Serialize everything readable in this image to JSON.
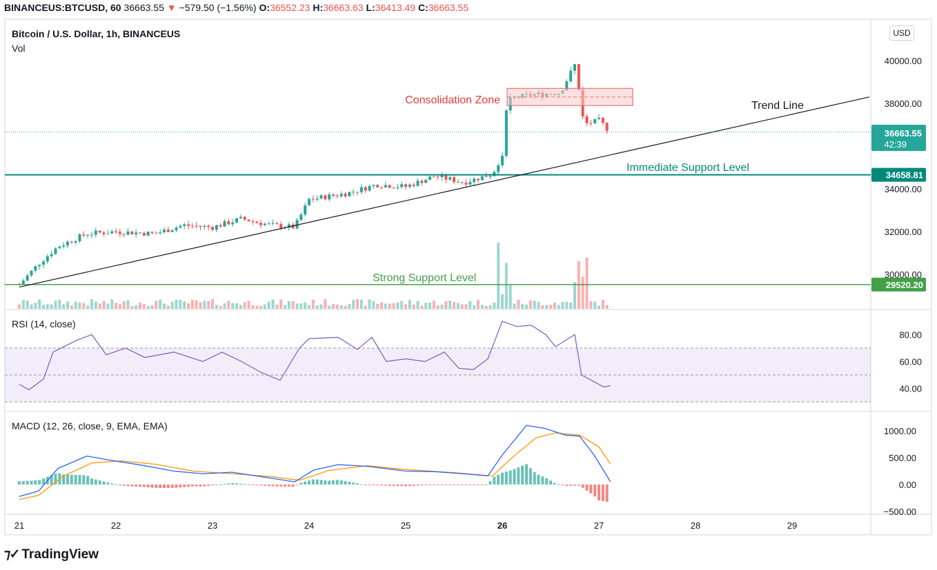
{
  "header": {
    "symbol": "BINANCEUS:BTCUSD, 60",
    "last": "36663.55",
    "arrow": "▼",
    "change": "−579.50 (−1.56%)",
    "o_label": "O:",
    "o_val": "36552.23",
    "h_label": "H:",
    "h_val": "36663.63",
    "l_label": "L:",
    "l_val": "36413.49",
    "c_label": "C:",
    "c_val": "36663.55"
  },
  "main": {
    "title": "Bitcoin / U.S. Dollar, 1h, BINANCEUS",
    "vol_label": "Vol",
    "currency_button": "USD",
    "price_ticks": [
      "40000.00",
      "38000.00",
      "34000.00",
      "32000.00",
      "30000.00"
    ],
    "last_price_tag": "36663.55",
    "countdown_tag": "42:39",
    "support1_tag": "34658.81",
    "support2_tag": "29520.20",
    "annotations": {
      "consolidation": "Consolidation Zone",
      "trend_line": "Trend Line",
      "immediate_support": "Immediate Support Level",
      "strong_support": "Strong Support Level"
    }
  },
  "rsi": {
    "title": "RSI (14, close)",
    "ticks": [
      "80.00",
      "60.00",
      "40.00"
    ]
  },
  "macd": {
    "title": "MACD (12, 26, close, 9, EMA, EMA)",
    "ticks": [
      "1000.00",
      "500.00",
      "0.00",
      "−500.00"
    ]
  },
  "time_axis": {
    "labels": [
      "21",
      "22",
      "23",
      "24",
      "25",
      "26",
      "27",
      "28",
      "29"
    ]
  },
  "branding": {
    "logo_text": "TradingView"
  },
  "colors": {
    "up": "#26a69a",
    "down": "#ef5350",
    "support": "#00897b",
    "strong_support": "#43a047",
    "rsi_line": "#7e57c2",
    "macd_line": "#2962ff",
    "signal_line": "#ff9800",
    "zone_fill": "#f8c9c9",
    "zone_border": "#e57373",
    "zone_label": "#e53935"
  },
  "chart_data": [
    {
      "type": "candlestick",
      "title": "Bitcoin / U.S. Dollar, 1h, BINANCEUS",
      "x_labels": [
        "21",
        "22",
        "23",
        "24",
        "25",
        "26",
        "27",
        "28",
        "29"
      ],
      "ylim": [
        29000,
        40800
      ],
      "anchors": [
        {
          "day": 21.0,
          "price": 29520
        },
        {
          "day": 21.2,
          "price": 30500
        },
        {
          "day": 21.4,
          "price": 31300
        },
        {
          "day": 21.7,
          "price": 31900
        },
        {
          "day": 22.0,
          "price": 32000
        },
        {
          "day": 22.4,
          "price": 31900
        },
        {
          "day": 22.7,
          "price": 32300
        },
        {
          "day": 23.0,
          "price": 32200
        },
        {
          "day": 23.3,
          "price": 32600
        },
        {
          "day": 23.6,
          "price": 32300
        },
        {
          "day": 23.85,
          "price": 32200
        },
        {
          "day": 24.0,
          "price": 33500
        },
        {
          "day": 24.4,
          "price": 33800
        },
        {
          "day": 24.7,
          "price": 34200
        },
        {
          "day": 25.0,
          "price": 34100
        },
        {
          "day": 25.3,
          "price": 34600
        },
        {
          "day": 25.6,
          "price": 34300
        },
        {
          "day": 25.9,
          "price": 34700
        },
        {
          "day": 26.0,
          "price": 35600
        },
        {
          "day": 26.05,
          "price": 38200
        },
        {
          "day": 26.3,
          "price": 38400
        },
        {
          "day": 26.6,
          "price": 38500
        },
        {
          "day": 26.75,
          "price": 39800
        },
        {
          "day": 26.85,
          "price": 37000
        },
        {
          "day": 27.0,
          "price": 37200
        },
        {
          "day": 27.12,
          "price": 36663
        }
      ],
      "support_levels": [
        34658.81,
        29520.2
      ],
      "consolidation_zone": [
        37900,
        38700
      ],
      "trend_line": [
        {
          "day": 21.0,
          "price": 29400
        },
        {
          "day": 29.8,
          "price": 38300
        }
      ]
    },
    {
      "type": "line",
      "title": "RSI (14, close)",
      "ylim": [
        25,
        95
      ],
      "bands": [
        70,
        50,
        30
      ],
      "points": [
        {
          "day": 21.0,
          "value": 43
        },
        {
          "day": 21.1,
          "value": 39
        },
        {
          "day": 21.25,
          "value": 47
        },
        {
          "day": 21.35,
          "value": 67
        },
        {
          "day": 21.6,
          "value": 76
        },
        {
          "day": 21.75,
          "value": 80
        },
        {
          "day": 21.9,
          "value": 65
        },
        {
          "day": 22.1,
          "value": 70
        },
        {
          "day": 22.3,
          "value": 63
        },
        {
          "day": 22.6,
          "value": 67
        },
        {
          "day": 22.9,
          "value": 60
        },
        {
          "day": 23.1,
          "value": 67
        },
        {
          "day": 23.3,
          "value": 60
        },
        {
          "day": 23.5,
          "value": 52
        },
        {
          "day": 23.7,
          "value": 46
        },
        {
          "day": 23.9,
          "value": 70
        },
        {
          "day": 24.0,
          "value": 77
        },
        {
          "day": 24.3,
          "value": 78
        },
        {
          "day": 24.5,
          "value": 69
        },
        {
          "day": 24.65,
          "value": 78
        },
        {
          "day": 24.8,
          "value": 60
        },
        {
          "day": 25.0,
          "value": 62
        },
        {
          "day": 25.2,
          "value": 60
        },
        {
          "day": 25.4,
          "value": 67
        },
        {
          "day": 25.55,
          "value": 55
        },
        {
          "day": 25.7,
          "value": 54
        },
        {
          "day": 25.85,
          "value": 62
        },
        {
          "day": 26.0,
          "value": 90
        },
        {
          "day": 26.15,
          "value": 86
        },
        {
          "day": 26.3,
          "value": 87
        },
        {
          "day": 26.45,
          "value": 80
        },
        {
          "day": 26.55,
          "value": 71
        },
        {
          "day": 26.75,
          "value": 80
        },
        {
          "day": 26.82,
          "value": 50
        },
        {
          "day": 26.95,
          "value": 45
        },
        {
          "day": 27.05,
          "value": 41
        },
        {
          "day": 27.12,
          "value": 42
        }
      ]
    },
    {
      "type": "line",
      "title": "MACD (12, 26, close, 9, EMA, EMA)",
      "ylim": [
        -550,
        1200
      ],
      "series": [
        {
          "name": "MACD",
          "points": [
            {
              "day": 21.0,
              "value": -220
            },
            {
              "day": 21.2,
              "value": -120
            },
            {
              "day": 21.4,
              "value": 300
            },
            {
              "day": 21.7,
              "value": 530
            },
            {
              "day": 21.95,
              "value": 450
            },
            {
              "day": 22.3,
              "value": 350
            },
            {
              "day": 22.6,
              "value": 250
            },
            {
              "day": 22.9,
              "value": 200
            },
            {
              "day": 23.2,
              "value": 230
            },
            {
              "day": 23.6,
              "value": 120
            },
            {
              "day": 23.85,
              "value": 50
            },
            {
              "day": 24.05,
              "value": 270
            },
            {
              "day": 24.3,
              "value": 370
            },
            {
              "day": 24.6,
              "value": 340
            },
            {
              "day": 25.0,
              "value": 250
            },
            {
              "day": 25.3,
              "value": 240
            },
            {
              "day": 25.6,
              "value": 200
            },
            {
              "day": 25.85,
              "value": 160
            },
            {
              "day": 26.0,
              "value": 550
            },
            {
              "day": 26.25,
              "value": 1100
            },
            {
              "day": 26.45,
              "value": 1040
            },
            {
              "day": 26.65,
              "value": 920
            },
            {
              "day": 26.8,
              "value": 900
            },
            {
              "day": 26.95,
              "value": 550
            },
            {
              "day": 27.12,
              "value": 50
            }
          ]
        },
        {
          "name": "Signal",
          "points": [
            {
              "day": 21.0,
              "value": -280
            },
            {
              "day": 21.2,
              "value": -200
            },
            {
              "day": 21.45,
              "value": 150
            },
            {
              "day": 21.75,
              "value": 400
            },
            {
              "day": 22.05,
              "value": 440
            },
            {
              "day": 22.4,
              "value": 380
            },
            {
              "day": 22.8,
              "value": 250
            },
            {
              "day": 23.2,
              "value": 200
            },
            {
              "day": 23.6,
              "value": 150
            },
            {
              "day": 23.9,
              "value": 80
            },
            {
              "day": 24.2,
              "value": 260
            },
            {
              "day": 24.6,
              "value": 350
            },
            {
              "day": 25.0,
              "value": 280
            },
            {
              "day": 25.5,
              "value": 220
            },
            {
              "day": 25.9,
              "value": 160
            },
            {
              "day": 26.1,
              "value": 500
            },
            {
              "day": 26.35,
              "value": 870
            },
            {
              "day": 26.55,
              "value": 960
            },
            {
              "day": 26.8,
              "value": 920
            },
            {
              "day": 27.0,
              "value": 700
            },
            {
              "day": 27.12,
              "value": 380
            }
          ]
        }
      ]
    }
  ]
}
